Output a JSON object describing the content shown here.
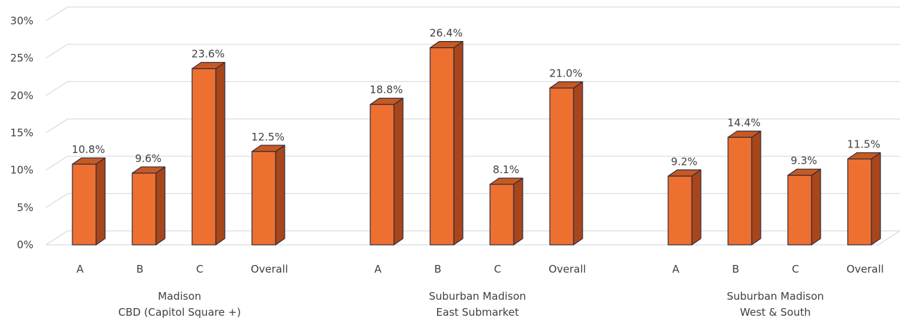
{
  "chart_data": {
    "type": "bar",
    "title": "",
    "xlabel": "",
    "ylabel": "",
    "ylim": [
      0,
      30
    ],
    "y_ticks": [
      "0%",
      "5%",
      "10%",
      "15%",
      "20%",
      "25%",
      "30%"
    ],
    "grid": true,
    "style": "3d-column",
    "colors": {
      "bar_front": "#ed7030",
      "bar_side": "#a8461b",
      "bar_top": "#c65a22",
      "bar_edge": "#2e2a3d",
      "grid": "#d9d9d9",
      "text": "#404040"
    },
    "groups": [
      {
        "label_lines": [
          "Madison",
          "CBD (Capitol Square +)"
        ],
        "categories": [
          "A",
          "B",
          "C",
          "Overall"
        ],
        "values": [
          10.8,
          9.6,
          23.6,
          12.5
        ],
        "labels": [
          "10.8%",
          "9.6%",
          "23.6%",
          "12.5%"
        ]
      },
      {
        "label_lines": [
          "Suburban Madison",
          "East Submarket"
        ],
        "categories": [
          "A",
          "B",
          "C",
          "Overall"
        ],
        "values": [
          18.8,
          26.4,
          8.1,
          21.0
        ],
        "labels": [
          "18.8%",
          "26.4%",
          "8.1%",
          "21.0%"
        ]
      },
      {
        "label_lines": [
          "Suburban Madison",
          "West & South"
        ],
        "categories": [
          "A",
          "B",
          "C",
          "Overall"
        ],
        "values": [
          9.2,
          14.4,
          9.3,
          11.5
        ],
        "labels": [
          "9.2%",
          "14.4%",
          "9.3%",
          "11.5%"
        ]
      }
    ]
  }
}
